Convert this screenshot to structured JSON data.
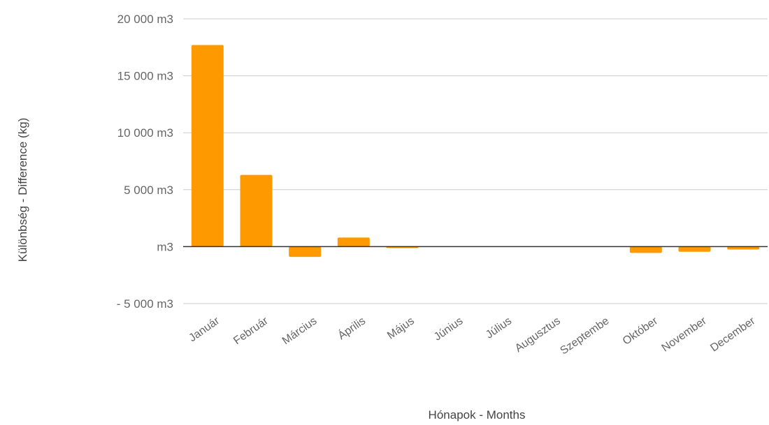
{
  "chart_data": {
    "type": "bar",
    "categories": [
      "Január",
      "Február",
      "Március",
      "Április",
      "Május",
      "Június",
      "Július",
      "Augusztus",
      "Szeptembe",
      "Október",
      "November",
      "December"
    ],
    "series": [
      {
        "values": [
          17700,
          6300,
          -900,
          800,
          -100,
          0,
          0,
          0,
          0,
          -550,
          -450,
          -250
        ]
      }
    ],
    "xlabel": "Hónapok - Months",
    "ylabel": "Különbség - Difference (kg)",
    "ylim": [
      -5000,
      20000
    ],
    "yticks": [
      20000,
      15000,
      10000,
      5000,
      0,
      -5000
    ],
    "ytick_labels": [
      "20 000  m3",
      "15 000  m3",
      "10 000  m3",
      "5 000  m3",
      "m3",
      "- 5 000  m3"
    ],
    "grid": true,
    "bar_color": "#ff9900"
  }
}
